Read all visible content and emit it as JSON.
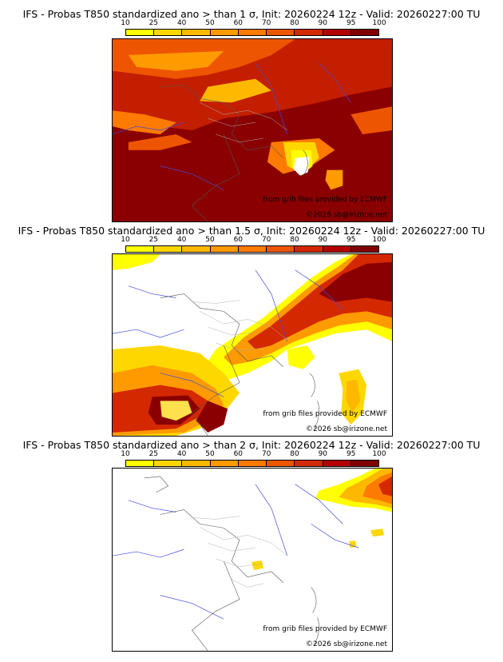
{
  "colorbar": {
    "ticks": [
      "10",
      "25",
      "40",
      "50",
      "60",
      "70",
      "80",
      "90",
      "95",
      "100"
    ],
    "colors": [
      "#ffff00",
      "#ffd700",
      "#ffb800",
      "#ff9a00",
      "#ff7a00",
      "#ee5500",
      "#d42800",
      "#b30000",
      "#800000"
    ]
  },
  "panels": [
    {
      "title": "IFS - Probas T850  standardized ano > than 1 σ, Init: 20260224 12z - Valid: 20260227:00 TU",
      "credit_source": "from grib files provided by ECMWF",
      "credit_copyright": "©2026 sb@irizone.net"
    },
    {
      "title": "IFS - Probas T850  standardized ano > than 1.5 σ, Init: 20260224 12z - Valid: 20260227:00 TU",
      "credit_source": "from grib files provided by ECMWF",
      "credit_copyright": "©2026 sb@irizone.net"
    },
    {
      "title": "IFS - Probas T850  standardized ano > than 2 σ, Init: 20260224 12z - Valid: 20260227:00 TU",
      "credit_source": "from grib files provided by ECMWF",
      "credit_copyright": "©2026 sb@irizone.net"
    }
  ]
}
